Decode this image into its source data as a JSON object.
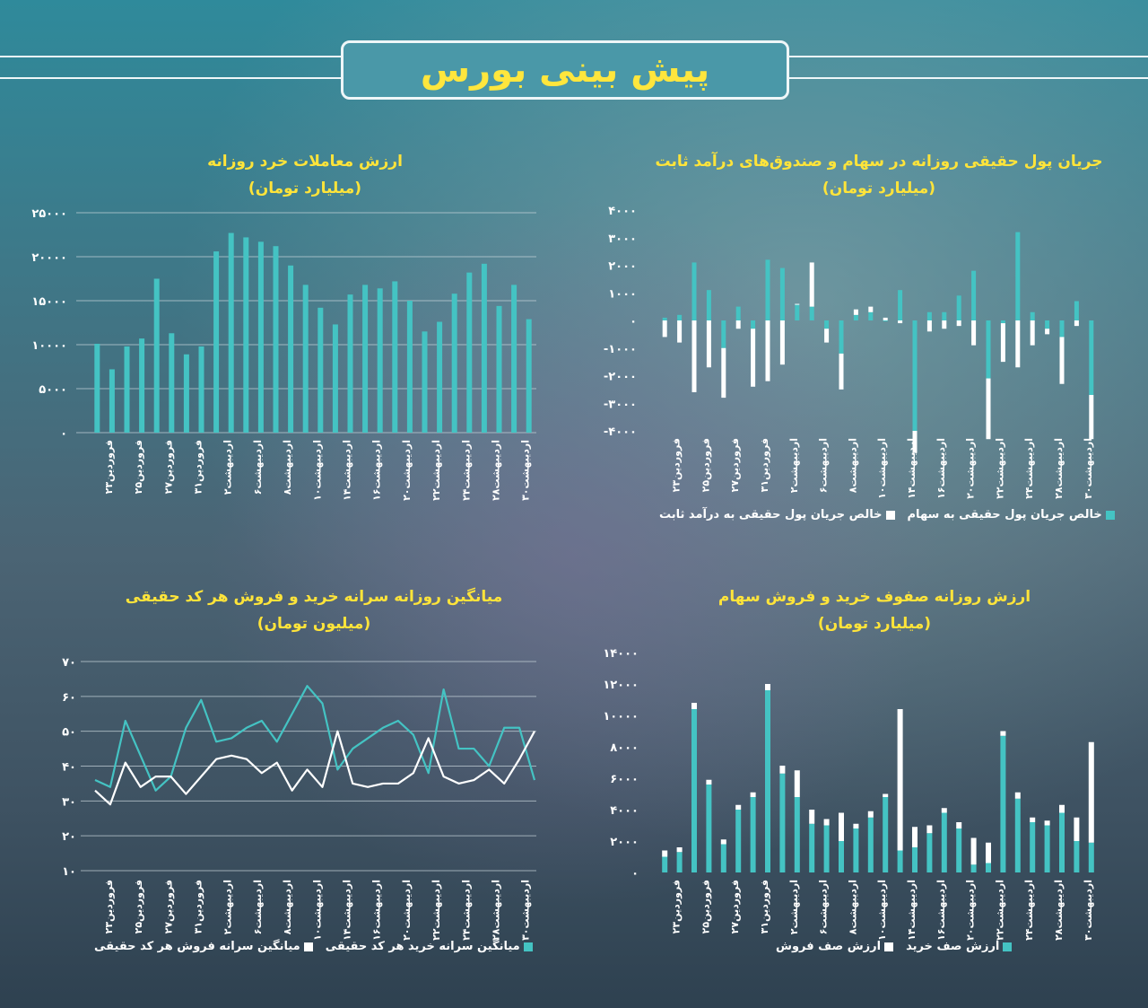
{
  "page_title": "پیش بینی بورس",
  "colors": {
    "teal": "#44c3c3",
    "white": "#ffffff",
    "title": "#ffe43a",
    "grid": "#c9d6dc"
  },
  "chart_data": [
    {
      "id": "retail",
      "type": "bar",
      "title": "ارزش معاملات خرد روزانه",
      "subtitle": "(میلیارد تومان)",
      "y_ticks": [
        "۲۵۰۰۰",
        "۲۰۰۰۰",
        "۱۵۰۰۰",
        "۱۰۰۰۰",
        "۵۰۰۰",
        "۰"
      ],
      "ylim": [
        0,
        25000
      ],
      "x_labels": [
        "فروردین۲۳",
        "فروردین۲۵",
        "فروردین۲۷",
        "فروردین۳۱",
        "اردیبهشت۲",
        "اردیبهشت۶",
        "اردیبهشت۸",
        "اردیبهشت۱۰",
        "اردیبهشت۱۴",
        "اردیبهشت۱۶",
        "اردیبهشت۲۰",
        "اردیبهشت۲۲",
        "اردیبهشت۲۴",
        "اردیبهشت۲۸",
        "اردیبهشت۳۰"
      ],
      "values": [
        10100,
        7200,
        9800,
        10700,
        17500,
        11300,
        8900,
        9800,
        20600,
        22700,
        22200,
        21700,
        21200,
        19000,
        16800,
        14200,
        12300,
        15700,
        16800,
        16400,
        17200,
        15000,
        11500,
        12600,
        15800,
        18200,
        19200,
        14400,
        16800,
        12900
      ]
    },
    {
      "id": "flow",
      "type": "bar",
      "title": "جریان پول حقیقی روزانه در سهام و صندوق‌های درآمد ثابت",
      "subtitle": "(میلیارد تومان)",
      "y_ticks": [
        "۴۰۰۰",
        "۳۰۰۰",
        "۲۰۰۰",
        "۱۰۰۰",
        "۰",
        "-۱۰۰۰",
        "-۲۰۰۰",
        "-۳۰۰۰",
        "-۴۰۰۰"
      ],
      "ylim": [
        -4000,
        4000
      ],
      "x_labels": [
        "فروردین۲۳",
        "فروردین۲۵",
        "فروردین۲۷",
        "فروردین۳۱",
        "اردیبهشت۲",
        "اردیبهشت۶",
        "اردیبهشت۸",
        "اردیبهشت۱۰",
        "اردیبهشت۱۴",
        "اردیبهشت۱۶",
        "اردیبهشت۲۰",
        "اردیبهشت۲۲",
        "اردیبهشت۲۴",
        "اردیبهشت۲۸",
        "اردیبهشت۳۰"
      ],
      "series": [
        {
          "name": "خالص جریان پول حقیقی به سهام",
          "values": [
            100,
            200,
            2100,
            1100,
            -1000,
            500,
            -300,
            2200,
            1900,
            600,
            500,
            -300,
            -1200,
            200,
            300,
            0,
            1100,
            -4000,
            300,
            300,
            900,
            1800,
            -2100,
            -100,
            3200,
            300,
            -300,
            -600,
            700,
            -2700
          ]
        },
        {
          "name": "خالص جریان پول حقیقی به درآمد ثابت",
          "values": [
            -600,
            -800,
            -2600,
            -1700,
            -1800,
            -300,
            -2100,
            -2200,
            -1600,
            0,
            1600,
            -500,
            -1300,
            200,
            200,
            100,
            -100,
            -800,
            -400,
            -300,
            -200,
            -900,
            -2200,
            -1400,
            -1700,
            -900,
            -200,
            -1700,
            -200,
            -1600
          ]
        }
      ]
    },
    {
      "id": "avg",
      "type": "line",
      "title": "میانگین روزانه سرانه خرید و فروش هر کد حقیقی",
      "subtitle": "(میلیون تومان)",
      "y_ticks": [
        "۷۰",
        "۶۰",
        "۵۰",
        "۴۰",
        "۳۰",
        "۲۰",
        "۱۰"
      ],
      "ylim": [
        10,
        70
      ],
      "x_labels": [
        "فروردین۲۳",
        "فروردین۲۵",
        "فروردین۲۷",
        "فروردین۳۱",
        "اردیبهشت۲",
        "اردیبهشت۶",
        "اردیبهشت۸",
        "اردیبهشت۱۰",
        "اردیبهشت۱۴",
        "اردیبهشت۱۶",
        "اردیبهشت۲۰",
        "اردیبهشت۲۲",
        "اردیبهشت۲۴",
        "اردیبهشت۲۸",
        "اردیبهشت۳۰"
      ],
      "series": [
        {
          "name": "میانگین سرانه خرید هر کد حقیقی",
          "values": [
            36,
            34,
            53,
            43,
            33,
            37,
            51,
            59,
            47,
            48,
            51,
            53,
            47,
            55,
            63,
            58,
            39,
            45,
            48,
            51,
            53,
            49,
            38,
            62,
            45,
            45,
            40,
            51,
            51,
            36
          ]
        },
        {
          "name": "میانگین سرانه فروش هر کد حقیقی",
          "values": [
            33,
            29,
            41,
            34,
            37,
            37,
            32,
            37,
            42,
            43,
            42,
            38,
            41,
            33,
            39,
            34,
            50,
            35,
            34,
            35,
            35,
            38,
            48,
            37,
            35,
            36,
            39,
            35,
            42,
            50
          ]
        }
      ]
    },
    {
      "id": "queues",
      "type": "bar",
      "title": "ارزش روزانه صفوف خرید و فروش سهام",
      "subtitle": "(میلیارد تومان)",
      "y_ticks": [
        "۱۴۰۰۰",
        "۱۲۰۰۰",
        "۱۰۰۰۰",
        "۸۰۰۰",
        "۶۰۰۰",
        "۴۰۰۰",
        "۲۰۰۰",
        "۰"
      ],
      "ylim": [
        0,
        14000
      ],
      "x_labels": [
        "فروردین۲۳",
        "فروردین۲۵",
        "فروردین۲۷",
        "فروردین۳۱",
        "اردیبهشت۲",
        "اردیبهشت۶",
        "اردیبهشت۸",
        "اردیبهشت۱۰",
        "اردیبهشت۱۴",
        "اردیبهشت۱۶",
        "اردیبهشت۲۰",
        "اردیبهشت۲۲",
        "اردیبهشت۲۴",
        "اردیبهشت۲۸",
        "اردیبهشت۳۰"
      ],
      "series": [
        {
          "name": "ارزش صف خرید",
          "values": [
            1000,
            1300,
            10400,
            5600,
            1800,
            4000,
            4800,
            11600,
            6300,
            4800,
            3100,
            3000,
            2000,
            2800,
            3500,
            4800,
            1400,
            1600,
            2500,
            3800,
            2800,
            500,
            600,
            8700,
            4700,
            3200,
            3000,
            3800,
            2000,
            1900
          ]
        },
        {
          "name": "ارزش صف فروش",
          "values": [
            400,
            300,
            400,
            300,
            300,
            300,
            300,
            400,
            500,
            1700,
            900,
            400,
            1800,
            300,
            400,
            200,
            9000,
            1300,
            500,
            300,
            400,
            1700,
            1300,
            300,
            400,
            300,
            300,
            500,
            1500,
            6400
          ]
        }
      ]
    }
  ]
}
